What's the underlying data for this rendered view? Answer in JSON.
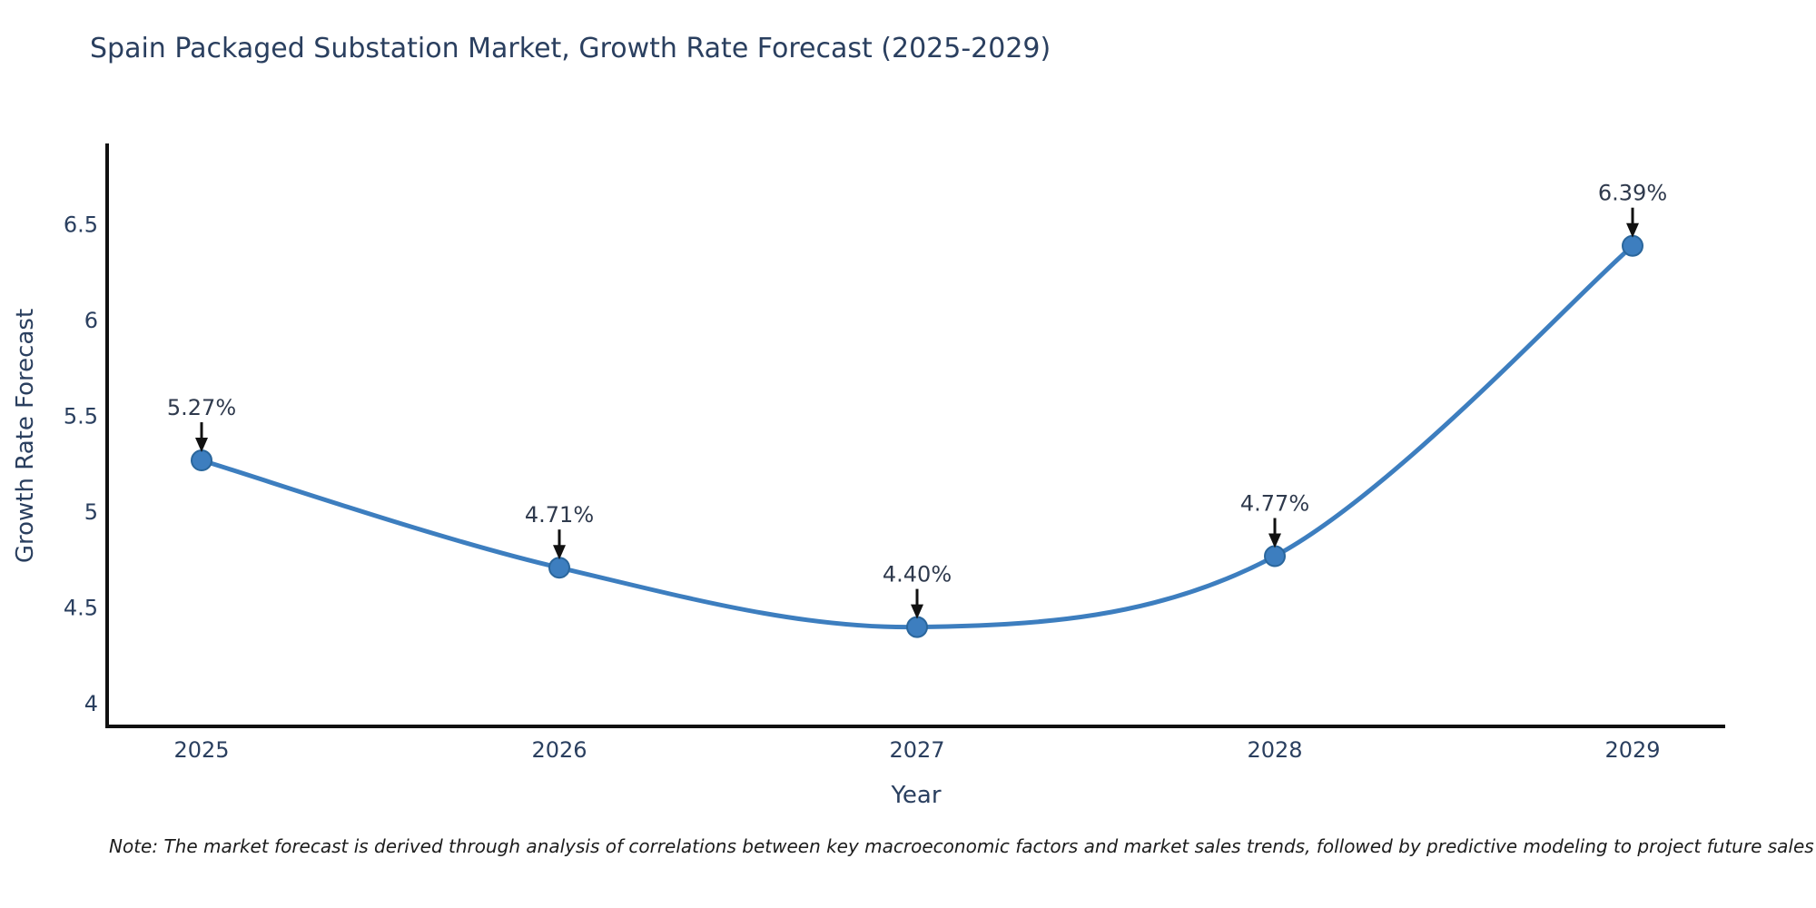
{
  "chart_data": {
    "type": "line",
    "title": "Spain Packaged Substation Market, Growth Rate Forecast (2025-2029)",
    "xlabel": "Year",
    "ylabel": "Growth Rate Forecast",
    "x": [
      2025,
      2026,
      2027,
      2028,
      2029
    ],
    "values": [
      5.27,
      4.71,
      4.4,
      4.77,
      6.39
    ],
    "point_labels": [
      "5.27%",
      "4.71%",
      "4.40%",
      "4.77%",
      "6.39%"
    ],
    "yticks": [
      4,
      4.5,
      5,
      5.5,
      6,
      6.5
    ],
    "ylim": [
      3.93,
      6.93
    ],
    "xlim": [
      2024.74,
      2029.26
    ],
    "grid": false,
    "legend": "none",
    "line_shape": "spline",
    "line_color": "#3d7ebf",
    "marker_color": "#3d7ebf",
    "marker_edge_color": "#2a669c",
    "axis_color": "#111111",
    "tick_color": "#2a3f5f",
    "annotation_text_color": "#2f3a4d",
    "annotation_arrow_color": "#111111",
    "note": "Note: The market forecast is derived through analysis of correlations between key macroeconomic factors and market sales trends, followed by predictive modeling to project future sales"
  }
}
